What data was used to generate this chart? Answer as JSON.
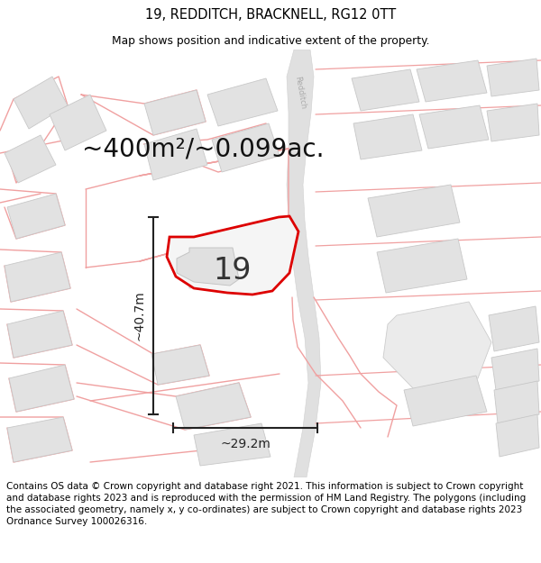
{
  "title": "19, REDDITCH, BRACKNELL, RG12 0TT",
  "subtitle": "Map shows position and indicative extent of the property.",
  "area_label": "~400m²/~0.099ac.",
  "number_label": "19",
  "width_label": "~29.2m",
  "height_label": "~40.7m",
  "footer_text": "Contains OS data © Crown copyright and database right 2021. This information is subject to Crown copyright and database rights 2023 and is reproduced with the permission of HM Land Registry. The polygons (including the associated geometry, namely x, y co-ordinates) are subject to Crown copyright and database rights 2023 Ordnance Survey 100026316.",
  "bg_color": "#ffffff",
  "map_bg": "#f9f9f9",
  "bldg_fill": "#e2e2e2",
  "bldg_stroke": "#c8c8c8",
  "pink": "#f0a0a0",
  "red": "#dd0000",
  "dim_color": "#222222",
  "road_fill": "#e8e8e8",
  "title_fontsize": 10.5,
  "subtitle_fontsize": 8.8,
  "area_fontsize": 20,
  "number_fontsize": 24,
  "dim_fontsize": 10,
  "footer_fontsize": 7.5,
  "prop_polygon_x": [
    308,
    320,
    326,
    316,
    295,
    265,
    230,
    205,
    188,
    182,
    192,
    230,
    265,
    290,
    296,
    290,
    280,
    260,
    230,
    202,
    188
  ],
  "prop_polygon_y": [
    185,
    185,
    195,
    240,
    270,
    275,
    278,
    268,
    253,
    230,
    210,
    210,
    218,
    228,
    240,
    252,
    262,
    268,
    265,
    250,
    228
  ]
}
